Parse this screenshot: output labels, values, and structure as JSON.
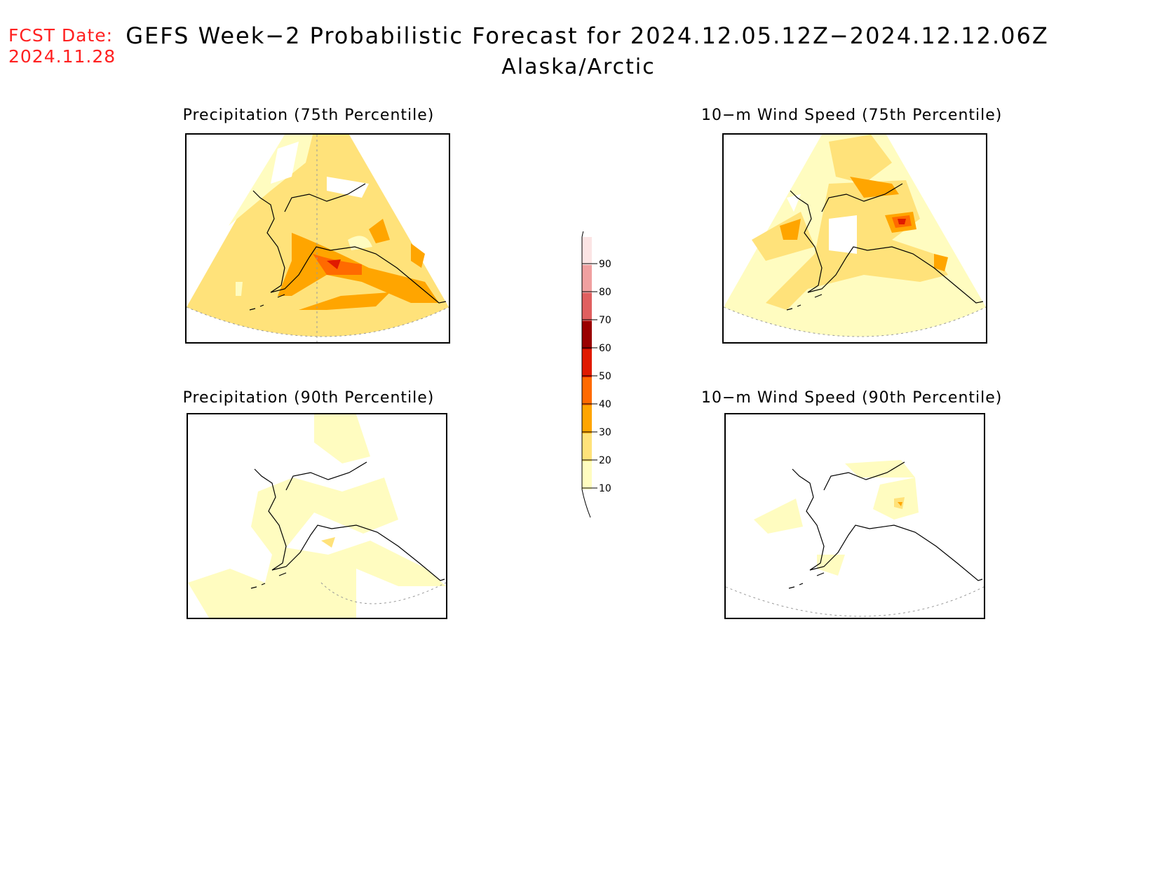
{
  "forecast_date": {
    "label": "FCST Date:",
    "value": "2024.11.28"
  },
  "title": "GEFS Week−2 Probabilistic Forecast for 2024.12.05.12Z−2024.12.12.06Z",
  "region": "Alaska/Arctic",
  "panels": [
    {
      "id": "precip-75",
      "title": "Precipitation (75th Percentile)"
    },
    {
      "id": "wind-75",
      "title": "10−m Wind Speed (75th Percentile)"
    },
    {
      "id": "precip-90",
      "title": "Precipitation (90th Percentile)"
    },
    {
      "id": "wind-90",
      "title": "10−m Wind Speed (90th Percentile)"
    }
  ],
  "legend": {
    "levels": [
      "10",
      "20",
      "30",
      "40",
      "50",
      "60",
      "70",
      "80",
      "90"
    ],
    "colors": [
      "#fffcc0",
      "#ffe27a",
      "#ffa500",
      "#ff6a00",
      "#e01a00",
      "#9a0000",
      "#e06060",
      "#f0a0a0",
      "#fbe4e4"
    ]
  }
}
